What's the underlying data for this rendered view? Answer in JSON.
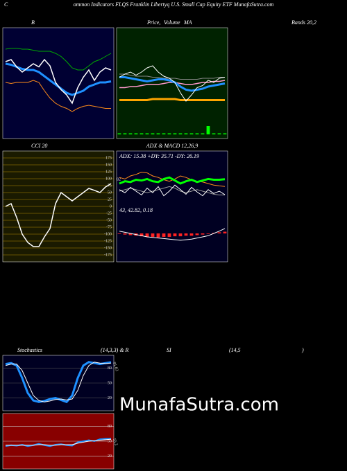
{
  "header": {
    "initial": "C",
    "title": "ommon  Indicators FLQS Franklin  Libertyq U.S. Small Cap Equity ETF MunafaSutra.com"
  },
  "watermark": "MunafaSutra.com",
  "chart_data": [
    {
      "type": "line",
      "title_parts": [
        "B",
        "Bands 20,2"
      ],
      "ylim": [
        0,
        100
      ],
      "series": [
        {
          "color": "#00aa00",
          "width": 1,
          "values": [
            82,
            83,
            83,
            82,
            82,
            81,
            80,
            80,
            80,
            78,
            75,
            70,
            64,
            62,
            62,
            66,
            70,
            72,
            75,
            78
          ]
        },
        {
          "color": "#1e90ff",
          "width": 3,
          "values": [
            68,
            67,
            65,
            63,
            62,
            62,
            60,
            56,
            52,
            48,
            44,
            40,
            38,
            40,
            42,
            46,
            48,
            50,
            50,
            51
          ]
        },
        {
          "color": "#ff8c1a",
          "width": 1,
          "values": [
            50,
            49,
            50,
            50,
            50,
            52,
            50,
            42,
            35,
            30,
            27,
            25,
            22,
            25,
            27,
            28,
            27,
            26,
            25,
            25
          ]
        },
        {
          "color": "#ffffff",
          "width": 1.5,
          "values": [
            70,
            72,
            65,
            60,
            64,
            68,
            65,
            72,
            66,
            50,
            43,
            38,
            30,
            45,
            55,
            62,
            52,
            60,
            64,
            62
          ]
        }
      ]
    },
    {
      "type": "line",
      "title_parts": [
        "Price,",
        "Volume",
        "MA"
      ],
      "ylim": [
        0,
        100
      ],
      "series": [
        {
          "color": "#888888",
          "width": 1,
          "values": [
            58,
            58,
            57,
            56,
            56,
            56,
            55,
            55,
            54,
            54,
            54,
            53,
            53,
            53,
            53,
            54,
            54,
            54,
            55,
            55
          ]
        },
        {
          "color": "#ff99cc",
          "width": 1.5,
          "values": [
            45,
            45,
            46,
            46,
            47,
            48,
            48,
            48,
            49,
            50,
            50,
            49,
            48,
            48,
            49,
            50,
            50,
            51,
            51,
            52
          ]
        },
        {
          "color": "#ffa500",
          "width": 3,
          "values": [
            33,
            33,
            33,
            33,
            33,
            33,
            34,
            34,
            34,
            34,
            34,
            33,
            33,
            33,
            33,
            33,
            33,
            33,
            33,
            33
          ]
        },
        {
          "color": "#1e90ff",
          "width": 3,
          "values": [
            55,
            55,
            54,
            53,
            52,
            51,
            52,
            53,
            53,
            52,
            50,
            46,
            43,
            42,
            43,
            44,
            46,
            47,
            48,
            49
          ]
        },
        {
          "color": "#ffffff",
          "width": 1,
          "values": [
            55,
            58,
            60,
            57,
            60,
            64,
            66,
            60,
            56,
            54,
            50,
            40,
            32,
            38,
            45,
            47,
            52,
            50,
            54,
            55
          ]
        },
        {
          "color": "#00ff00",
          "style": "bar",
          "values": [
            1,
            1,
            1,
            1,
            1,
            1,
            1,
            1,
            1,
            1,
            1,
            1,
            1,
            1,
            1,
            1,
            8,
            1,
            1,
            1
          ]
        }
      ]
    },
    {
      "type": "line",
      "title_parts": [
        "CCI 20"
      ],
      "ylim": [
        -200,
        200
      ],
      "yticks": [
        175,
        150,
        125,
        100,
        75,
        50,
        25,
        0,
        -25,
        -50,
        -75,
        -100,
        -125,
        -150,
        -175
      ],
      "series": [
        {
          "color": "#ffffff",
          "width": 1.5,
          "values": [
            0,
            10,
            -40,
            -100,
            -130,
            -145,
            -145,
            -110,
            -80,
            10,
            50,
            35,
            20,
            35,
            50,
            65,
            58,
            50,
            70,
            82
          ]
        }
      ]
    },
    {
      "type": "line",
      "title_parts": [
        "ADX  & MACD 12,26,9"
      ],
      "annotation": "ADX: 15.38  +DY: 35.71 -DY: 26.19",
      "ylim": [
        0,
        60
      ],
      "series": [
        {
          "color": "#ff8c1a",
          "width": 1,
          "values": [
            38,
            36,
            40,
            42,
            45,
            44,
            40,
            38,
            35,
            33,
            36,
            40,
            38,
            35,
            33,
            32,
            30,
            28,
            27,
            26.19
          ]
        },
        {
          "color": "#999999",
          "width": 1,
          "values": [
            20,
            22,
            24,
            22,
            20,
            18,
            20,
            22,
            24,
            26,
            24,
            20,
            18,
            20,
            22,
            20,
            18,
            16,
            15,
            15
          ]
        },
        {
          "color": "#ffffff",
          "width": 1,
          "values": [
            22,
            18,
            25,
            20,
            15,
            24,
            18,
            26,
            14,
            20,
            28,
            22,
            16,
            25,
            19,
            14,
            22,
            17,
            20,
            15.38
          ]
        },
        {
          "color": "#00ff00",
          "width": 3,
          "values": [
            30,
            33,
            32,
            35,
            34,
            36,
            33,
            32,
            36,
            38,
            34,
            30,
            33,
            35,
            32,
            34,
            36,
            35,
            35,
            35.71
          ]
        }
      ]
    },
    {
      "type": "line",
      "annotation": "43, 42.82, 0.18",
      "ylim": [
        -2,
        2
      ],
      "series": [
        {
          "color": "#ff2222",
          "style": "bar",
          "values": [
            -0.05,
            -0.1,
            -0.15,
            -0.2,
            -0.25,
            -0.3,
            -0.3,
            -0.35,
            -0.3,
            -0.3,
            -0.25,
            -0.25,
            -0.2,
            -0.2,
            -0.15,
            -0.1,
            -0.05,
            0.05,
            0.1,
            0.15
          ]
        },
        {
          "color": "#ffffff",
          "width": 1,
          "values": [
            0.2,
            0.1,
            0,
            -0.1,
            -0.2,
            -0.3,
            -0.35,
            -0.4,
            -0.45,
            -0.5,
            -0.55,
            -0.6,
            -0.55,
            -0.5,
            -0.4,
            -0.3,
            -0.2,
            0,
            0.2,
            0.43
          ]
        }
      ]
    },
    {
      "type": "line",
      "title_parts": [
        "Stochastics",
        "(14,3,3) & R",
        "SI",
        "(14,5",
        ")"
      ],
      "ylim": [
        0,
        100
      ],
      "yticks": [
        80,
        50,
        20
      ],
      "series": [
        {
          "color": "#1e90ff",
          "width": 3,
          "values": [
            88,
            90,
            85,
            60,
            30,
            15,
            12,
            14,
            18,
            20,
            16,
            12,
            25,
            60,
            85,
            92,
            90,
            88,
            90,
            91.63
          ]
        },
        {
          "color": "#ffffff",
          "width": 1,
          "values": [
            85,
            88,
            88,
            75,
            50,
            25,
            15,
            12,
            14,
            17,
            18,
            16,
            18,
            35,
            65,
            85,
            92,
            90,
            89,
            90
          ]
        }
      ]
    },
    {
      "type": "line",
      "ylim": [
        0,
        100
      ],
      "yticks": [
        80,
        50,
        20
      ],
      "series": [
        {
          "color": "#1e90ff",
          "width": 2,
          "values": [
            40,
            42,
            41,
            43,
            40,
            42,
            45,
            42,
            40,
            43,
            44,
            42,
            41,
            48,
            50,
            52,
            50,
            54,
            55,
            55.2
          ]
        },
        {
          "color": "#ffffff",
          "width": 1,
          "values": [
            42,
            42,
            42,
            42,
            42,
            42,
            43,
            43,
            42,
            42,
            43,
            43,
            43,
            46,
            48,
            50,
            51,
            52,
            53,
            54
          ]
        }
      ]
    }
  ]
}
